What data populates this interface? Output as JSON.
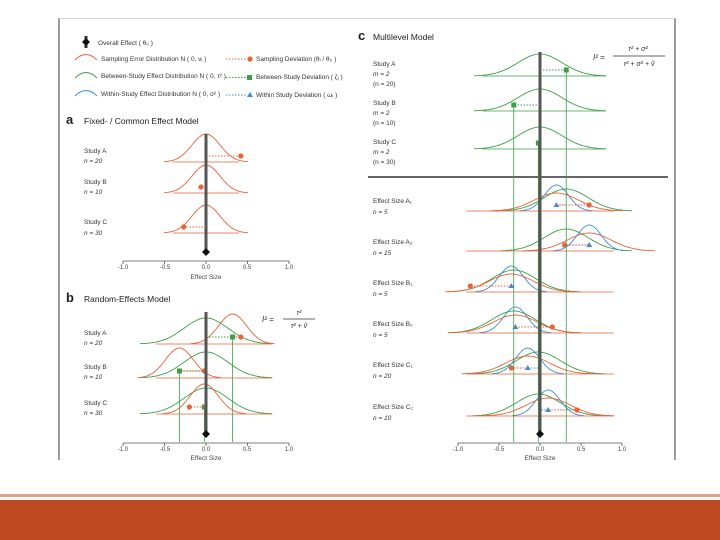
{
  "legend": {
    "items": [
      {
        "label": "Overall Effect ( θ₀ )",
        "color": "#222222"
      },
      {
        "label": "Sampling Error Distribution N ( 0, vᵢ )",
        "color": "#e8623a"
      },
      {
        "label": "Between-Study Effect Distribution N ( 0, τ² )",
        "color": "#3aa048"
      },
      {
        "label": "Within-Study Effect Distribution N ( 0, σ² )",
        "color": "#3a8fd6"
      }
    ],
    "right_items": [
      {
        "label": "Sampling Deviation (θᵢ / θ₀ )",
        "color": "#e8623a"
      },
      {
        "label": "Between-Study Deviation ( ζᵢ )",
        "color": "#3aa048"
      },
      {
        "label": "Within Study Deviation ( ωᵢ )",
        "color": "#3a8fd6"
      }
    ]
  },
  "panel_a": {
    "letter": "a",
    "title": "Fixed- / Common Effect Model",
    "studies": [
      {
        "name": "Study A",
        "n_label": "n = 20",
        "dot": 0.42
      },
      {
        "name": "Study B",
        "n_label": "n = 10",
        "dot": -0.06
      },
      {
        "name": "Study C",
        "n_label": "n = 30",
        "dot": -0.27
      }
    ],
    "overall": 0.0,
    "xticks": [
      "-1.0",
      "-0.5",
      "0.0",
      "0.5",
      "1.0"
    ],
    "xlabel": "Effect Size"
  },
  "panel_b": {
    "letter": "b",
    "title": "Random-Effects Model",
    "formula": {
      "lhs": "I² =",
      "num": "τ²",
      "den": "τ² + ṽ"
    },
    "studies": [
      {
        "name": "Study A",
        "n_label": "n = 20",
        "green": 0.32,
        "dot": 0.42
      },
      {
        "name": "Study B",
        "n_label": "n = 10",
        "green": -0.32,
        "dot": -0.02
      },
      {
        "name": "Study C",
        "n_label": "n = 30",
        "green": -0.02,
        "dot": -0.2
      }
    ],
    "overall": 0.0,
    "xticks": [
      "-1.0",
      "-0.5",
      "0.0",
      "0.5",
      "1.0"
    ],
    "xlabel": "Effect Size"
  },
  "panel_c": {
    "letter": "c",
    "title": "Multilevel Model",
    "formula": {
      "lhs": "I² =",
      "num": "τ² + σ²",
      "den": "τ² + σ² + ṽ"
    },
    "studies": [
      {
        "name": "Study A",
        "m_label": "m = 2",
        "n_label": "(n = 20)",
        "green": 0.32
      },
      {
        "name": "Study B",
        "m_label": "m = 2",
        "n_label": "(n = 10)",
        "green": -0.32
      },
      {
        "name": "Study C",
        "m_label": "m = 2",
        "n_label": "(n = 30)",
        "green": -0.02
      }
    ],
    "effects": [
      {
        "name": "Effect Size A₁",
        "n_label": "n = 5",
        "green": 0.32,
        "blue": 0.2,
        "dot": 0.6
      },
      {
        "name": "Effect Size A₂",
        "n_label": "n = 15",
        "green": 0.32,
        "blue": 0.6,
        "dot": 0.3
      },
      {
        "name": "Effect Size B₁",
        "n_label": "n = 5",
        "green": -0.32,
        "blue": -0.35,
        "dot": -0.85
      },
      {
        "name": "Effect Size B₂",
        "n_label": "n = 5",
        "green": -0.32,
        "blue": -0.3,
        "dot": 0.15
      },
      {
        "name": "Effect Size C₁",
        "n_label": "n = 20",
        "green": -0.02,
        "blue": -0.15,
        "dot": -0.35
      },
      {
        "name": "Effect Size C₂",
        "n_label": "n = 10",
        "green": -0.02,
        "blue": 0.1,
        "dot": 0.45
      }
    ],
    "overall": 0.0,
    "xticks": [
      "-1.0",
      "-0.5",
      "0.0",
      "0.5",
      "1.0"
    ],
    "xlabel": "Effect Size"
  },
  "colors": {
    "red": "#e8623a",
    "green": "#3aa048",
    "blue": "#3a8fd6",
    "dark": "#444444",
    "footer": "#bf4a22"
  }
}
